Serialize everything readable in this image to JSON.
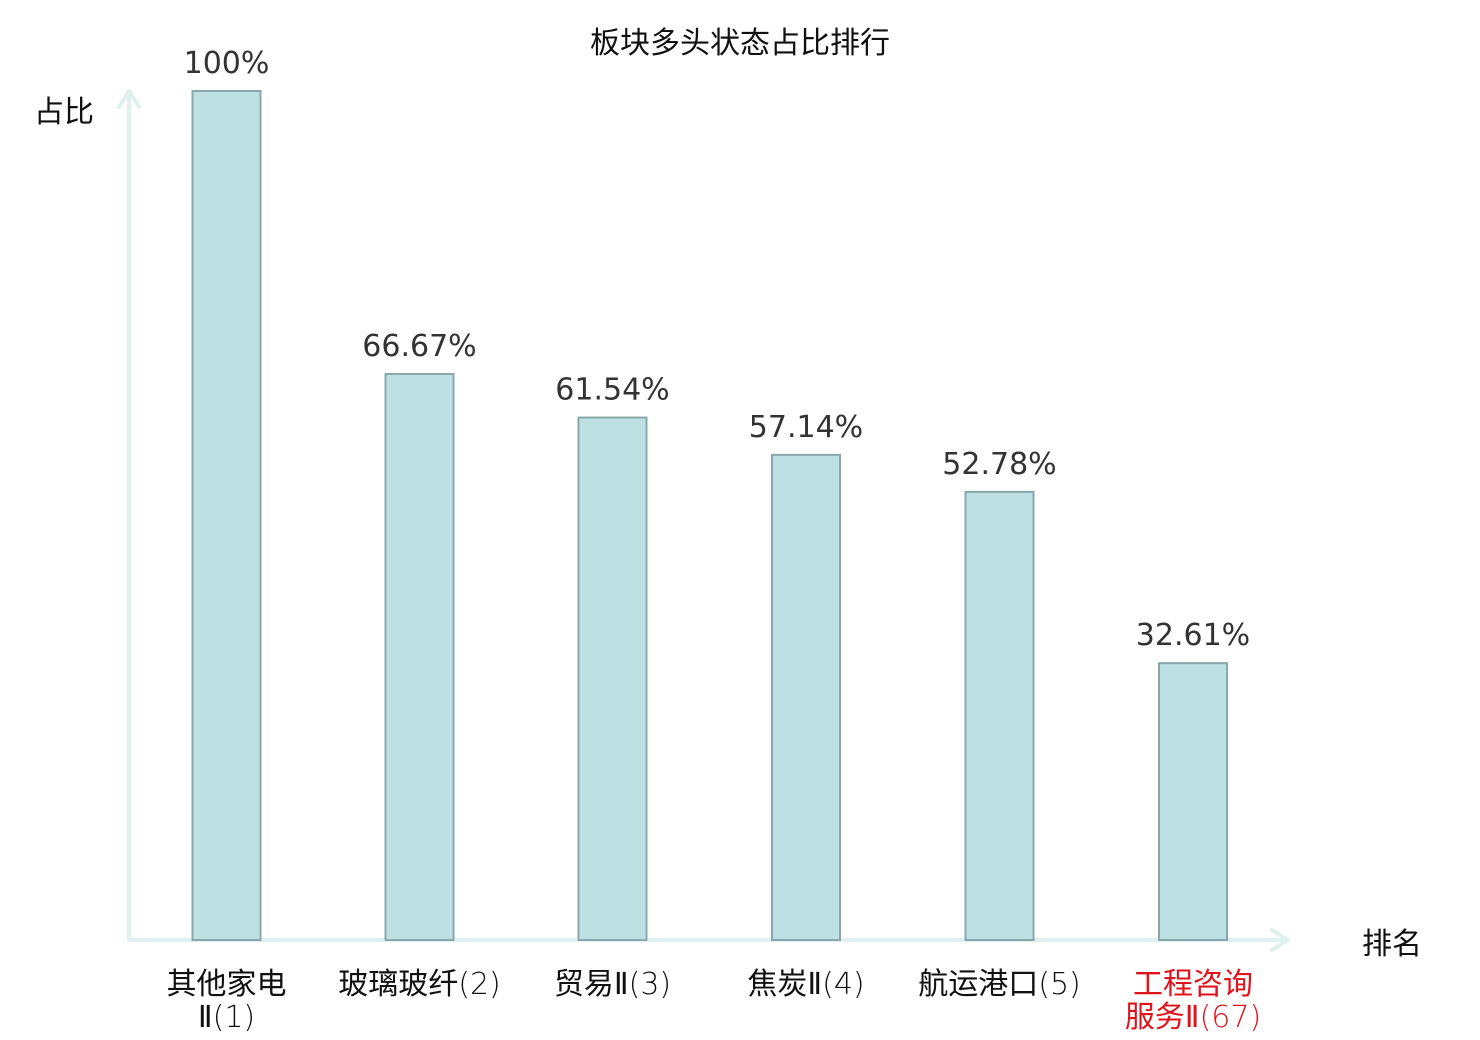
{
  "chart_data": {
    "type": "bar",
    "title": "板块多头状态占比排行",
    "ylabel": "占比",
    "xlabel": "排名",
    "ylim": [
      0,
      100
    ],
    "categories": [
      {
        "name_lines": [
          "其他家电",
          "Ⅱ"
        ],
        "rank": "(1)",
        "highlight": false
      },
      {
        "name_lines": [
          "玻璃玻纤"
        ],
        "rank": "(2)",
        "highlight": false
      },
      {
        "name_lines": [
          "贸易Ⅱ"
        ],
        "rank": "(3)",
        "highlight": false
      },
      {
        "name_lines": [
          "焦炭Ⅱ"
        ],
        "rank": "(4)",
        "highlight": false
      },
      {
        "name_lines": [
          "航运港口"
        ],
        "rank": "(5)",
        "highlight": false
      },
      {
        "name_lines": [
          "工程咨询",
          "服务Ⅱ"
        ],
        "rank": "(67)",
        "highlight": true
      }
    ],
    "values": [
      100,
      66.67,
      61.54,
      57.14,
      52.78,
      32.61
    ],
    "value_labels": [
      "100%",
      "66.67%",
      "61.54%",
      "57.14%",
      "52.78%",
      "32.61%"
    ],
    "grid": false,
    "colors": {
      "bar_fill": "#bde0e3",
      "bar_stroke": "#8aa8ab",
      "axis": "#dff1ef",
      "highlight": "#e0131b",
      "text": "#111111",
      "value_text": "#333333"
    }
  }
}
